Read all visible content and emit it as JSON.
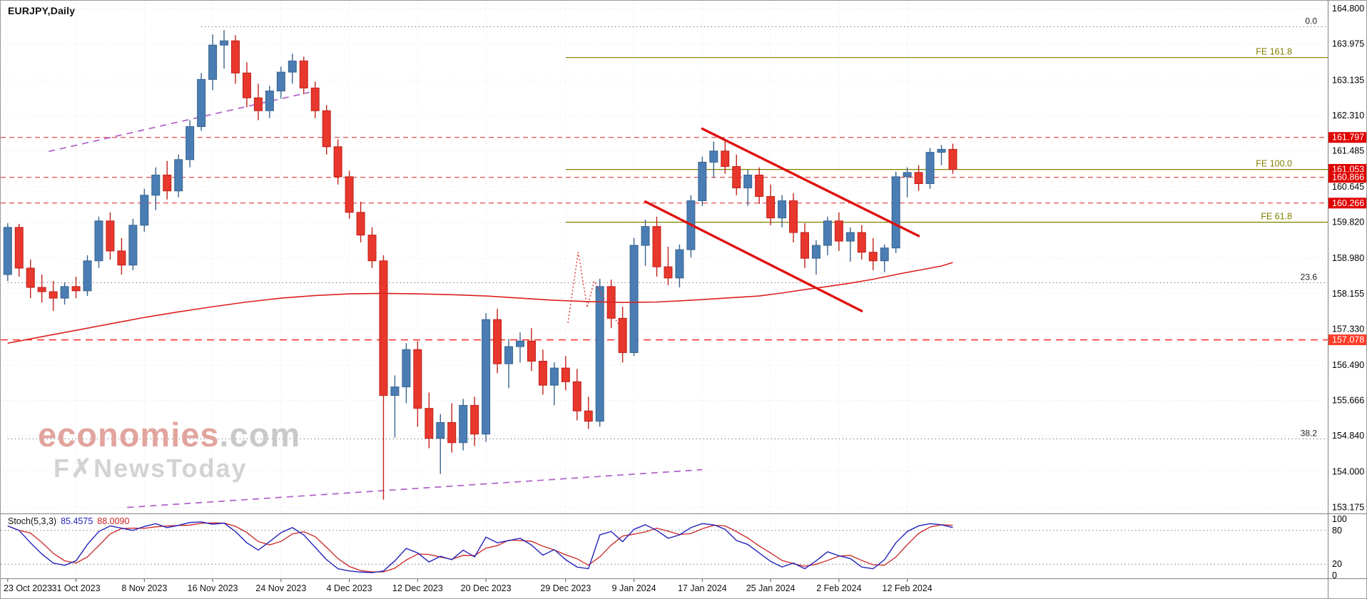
{
  "window": {
    "title": "EURJPY,Daily"
  },
  "watermark": {
    "brand": "economies",
    "brand_suffix": ".com",
    "tagline": "F✗NewsToday"
  },
  "indicator": {
    "label": "Stoch(5,3,3)",
    "main_value": "85.4575",
    "signal_value": "88.0090",
    "axis_labels": [
      {
        "label": "100",
        "value": 100
      },
      {
        "label": "80",
        "value": 80
      },
      {
        "label": "20",
        "value": 20
      },
      {
        "label": "0",
        "value": 0
      }
    ],
    "level_lines": [
      80,
      20
    ]
  },
  "colors": {
    "background": "#ffffff",
    "grid": "#dfe4f2",
    "bull": "#4a7db3",
    "bull_border": "#3a648f",
    "bear": "#e8372c",
    "bear_border": "#c0211a",
    "ma": "#dd2020",
    "channel": "#e01010",
    "trendline": "#b266cc",
    "fib_expansion": "#808000",
    "fib_retracement": "#3a3a3a",
    "resistance": "#dd2222",
    "support_bright": "#ff3333",
    "price_tag": "#e00000",
    "price_tag_bright": "#ff3c28",
    "axis_text": "#000000",
    "separator": "#808080",
    "stoch_main": "#2222bb",
    "stoch_signal": "#cc2222",
    "stoch_level": "#9a9a9a"
  },
  "chart_data": {
    "type": "candlestick",
    "symbol": "EURJPY",
    "timeframe": "Daily",
    "ylim": [
      153.03,
      164.985
    ],
    "price_axis_labels": [
      "164.800",
      "163.975",
      "163.135",
      "162.310",
      "161.485",
      "160.645",
      "159.820",
      "158.980",
      "158.155",
      "157.330",
      "156.490",
      "155.666",
      "154.840",
      "154.000",
      "153.175"
    ],
    "date_ticks": [
      {
        "label": "23 Oct 2023",
        "index": 0
      },
      {
        "label": "31 Oct 2023",
        "index": 6
      },
      {
        "label": "8 Nov 2023",
        "index": 12
      },
      {
        "label": "16 Nov 2023",
        "index": 18
      },
      {
        "label": "24 Nov 2023",
        "index": 24
      },
      {
        "label": "4 Dec 2023",
        "index": 30
      },
      {
        "label": "12 Dec 2023",
        "index": 36
      },
      {
        "label": "20 Dec 2023",
        "index": 42
      },
      {
        "label": "29 Dec 2023",
        "index": 49
      },
      {
        "label": "9 Jan 2024",
        "index": 55
      },
      {
        "label": "17 Jan 2024",
        "index": 61
      },
      {
        "label": "25 Jan 2024",
        "index": 67
      },
      {
        "label": "2 Feb 2024",
        "index": 73
      },
      {
        "label": "12 Feb 2024",
        "index": 79
      }
    ],
    "candles_ohlc": [
      [
        158.6,
        159.8,
        158.45,
        159.7
      ],
      [
        159.7,
        159.78,
        158.55,
        158.75
      ],
      [
        158.75,
        158.95,
        158.05,
        158.3
      ],
      [
        158.3,
        158.6,
        157.95,
        158.2
      ],
      [
        158.2,
        158.45,
        157.75,
        158.05
      ],
      [
        158.05,
        158.42,
        157.9,
        158.32
      ],
      [
        158.32,
        158.55,
        158.05,
        158.22
      ],
      [
        158.22,
        159.05,
        158.1,
        158.92
      ],
      [
        158.92,
        159.95,
        158.75,
        159.85
      ],
      [
        159.85,
        160.05,
        158.95,
        159.15
      ],
      [
        159.15,
        159.45,
        158.6,
        158.82
      ],
      [
        158.82,
        159.9,
        158.7,
        159.75
      ],
      [
        159.75,
        160.6,
        159.6,
        160.45
      ],
      [
        160.45,
        161.1,
        160.1,
        160.92
      ],
      [
        160.92,
        161.25,
        160.35,
        160.55
      ],
      [
        160.55,
        161.4,
        160.4,
        161.28
      ],
      [
        161.28,
        162.2,
        161.1,
        162.05
      ],
      [
        162.05,
        163.3,
        161.95,
        163.15
      ],
      [
        163.15,
        164.2,
        162.9,
        163.95
      ],
      [
        163.95,
        164.3,
        163.4,
        164.05
      ],
      [
        164.05,
        164.18,
        163.05,
        163.3
      ],
      [
        163.3,
        163.55,
        162.5,
        162.72
      ],
      [
        162.72,
        163.05,
        162.2,
        162.42
      ],
      [
        162.42,
        163.0,
        162.25,
        162.88
      ],
      [
        162.88,
        163.45,
        162.7,
        163.32
      ],
      [
        163.32,
        163.75,
        163.05,
        163.58
      ],
      [
        163.58,
        163.68,
        162.8,
        162.95
      ],
      [
        162.95,
        163.1,
        162.25,
        162.42
      ],
      [
        162.42,
        162.55,
        161.4,
        161.58
      ],
      [
        161.58,
        161.75,
        160.7,
        160.88
      ],
      [
        160.88,
        161.02,
        159.9,
        160.05
      ],
      [
        160.05,
        160.3,
        159.35,
        159.52
      ],
      [
        159.52,
        159.7,
        158.75,
        158.92
      ],
      [
        158.92,
        159.05,
        153.35,
        155.78
      ],
      [
        155.78,
        156.25,
        154.8,
        155.98
      ],
      [
        155.98,
        157.0,
        155.6,
        156.85
      ],
      [
        156.85,
        157.05,
        155.05,
        155.48
      ],
      [
        155.48,
        155.85,
        154.55,
        154.78
      ],
      [
        154.78,
        155.35,
        153.95,
        155.15
      ],
      [
        155.15,
        155.6,
        154.45,
        154.68
      ],
      [
        154.68,
        155.7,
        154.5,
        155.55
      ],
      [
        155.55,
        155.75,
        154.6,
        154.88
      ],
      [
        154.88,
        157.7,
        154.7,
        157.55
      ],
      [
        157.55,
        157.8,
        156.3,
        156.52
      ],
      [
        156.52,
        157.1,
        155.95,
        156.92
      ],
      [
        156.92,
        157.25,
        156.55,
        157.05
      ],
      [
        157.05,
        157.35,
        156.35,
        156.58
      ],
      [
        156.58,
        156.85,
        155.8,
        156.02
      ],
      [
        156.02,
        156.55,
        155.55,
        156.42
      ],
      [
        156.42,
        156.7,
        155.9,
        156.1
      ],
      [
        156.1,
        156.4,
        155.2,
        155.42
      ],
      [
        155.42,
        155.75,
        155.0,
        155.18
      ],
      [
        155.18,
        158.5,
        155.05,
        158.32
      ],
      [
        158.32,
        158.48,
        157.35,
        157.58
      ],
      [
        157.58,
        157.85,
        156.55,
        156.78
      ],
      [
        156.78,
        159.45,
        156.7,
        159.28
      ],
      [
        159.28,
        159.88,
        158.8,
        159.72
      ],
      [
        159.72,
        159.95,
        158.55,
        158.78
      ],
      [
        158.78,
        159.25,
        158.35,
        158.52
      ],
      [
        158.52,
        159.3,
        158.3,
        159.18
      ],
      [
        159.18,
        160.45,
        159.0,
        160.32
      ],
      [
        160.32,
        161.35,
        160.2,
        161.22
      ],
      [
        161.22,
        161.7,
        160.85,
        161.48
      ],
      [
        161.48,
        161.75,
        160.95,
        161.12
      ],
      [
        161.12,
        161.4,
        160.45,
        160.62
      ],
      [
        160.62,
        161.05,
        160.2,
        160.92
      ],
      [
        160.92,
        161.1,
        160.25,
        160.42
      ],
      [
        160.42,
        160.7,
        159.75,
        159.92
      ],
      [
        159.92,
        160.45,
        159.7,
        160.32
      ],
      [
        160.32,
        160.5,
        159.35,
        159.58
      ],
      [
        159.58,
        159.8,
        158.75,
        158.98
      ],
      [
        158.98,
        159.4,
        158.6,
        159.28
      ],
      [
        159.28,
        159.95,
        159.05,
        159.85
      ],
      [
        159.85,
        160.05,
        159.15,
        159.38
      ],
      [
        159.38,
        159.7,
        158.9,
        159.58
      ],
      [
        159.58,
        159.75,
        158.95,
        159.12
      ],
      [
        159.12,
        159.45,
        158.7,
        158.92
      ],
      [
        158.92,
        159.3,
        158.65,
        159.22
      ],
      [
        159.22,
        161.0,
        159.1,
        160.88
      ],
      [
        160.88,
        161.1,
        160.4,
        160.98
      ],
      [
        160.98,
        161.15,
        160.55,
        160.72
      ],
      [
        160.72,
        161.55,
        160.6,
        161.45
      ],
      [
        161.45,
        161.62,
        161.15,
        161.52
      ],
      [
        161.52,
        161.65,
        160.95,
        161.05
      ]
    ],
    "moving_average": [
      [
        0,
        157.0
      ],
      [
        3,
        157.15
      ],
      [
        6,
        157.3
      ],
      [
        9,
        157.45
      ],
      [
        12,
        157.6
      ],
      [
        15,
        157.73
      ],
      [
        18,
        157.85
      ],
      [
        21,
        157.96
      ],
      [
        24,
        158.05
      ],
      [
        27,
        158.11
      ],
      [
        30,
        158.15
      ],
      [
        33,
        158.16
      ],
      [
        36,
        158.15
      ],
      [
        39,
        158.13
      ],
      [
        42,
        158.1
      ],
      [
        45,
        158.05
      ],
      [
        48,
        158.0
      ],
      [
        51,
        157.97
      ],
      [
        54,
        157.95
      ],
      [
        57,
        157.96
      ],
      [
        60,
        158.0
      ],
      [
        63,
        158.05
      ],
      [
        66,
        158.1
      ],
      [
        68,
        158.17
      ],
      [
        70,
        158.25
      ],
      [
        72,
        158.32
      ],
      [
        74,
        158.4
      ],
      [
        76,
        158.49
      ],
      [
        78,
        158.6
      ],
      [
        80,
        158.7
      ],
      [
        81,
        158.75
      ],
      [
        82,
        158.8
      ],
      [
        83,
        158.88
      ]
    ],
    "annotations": {
      "channel": {
        "upper": [
          [
            61,
            162.0
          ],
          [
            80,
            159.5
          ]
        ],
        "lower": [
          [
            56,
            160.3
          ],
          [
            75,
            157.75
          ]
        ]
      },
      "trendlines": [
        {
          "points": [
            [
              3.6,
              161.47
            ],
            [
              26.5,
              162.85
            ]
          ]
        },
        {
          "points": [
            [
              10.5,
              153.17
            ],
            [
              61,
              154.05
            ]
          ]
        }
      ],
      "zigzag": [
        [
          49.2,
          157.47
        ],
        [
          50.1,
          159.12
        ],
        [
          50.9,
          157.83
        ],
        [
          51.5,
          158.45
        ],
        [
          53.6,
          157.45
        ]
      ],
      "fib_expansion": {
        "start_index": 49,
        "levels": [
          {
            "label": "FE 161.8",
            "price": 163.66
          },
          {
            "label": "FE 100.0",
            "price": 161.05
          },
          {
            "label": "FE 61.8",
            "price": 159.82
          }
        ]
      },
      "fib_retracement": [
        {
          "label": "0.0",
          "price": 164.38,
          "start_index": 17
        },
        {
          "label": "23.6",
          "price": 158.41,
          "start_index": 0
        },
        {
          "label": "38.2",
          "price": 154.77,
          "start_index": 0
        }
      ],
      "hlines": [
        {
          "price": 161.797,
          "style": "resistance"
        },
        {
          "price": 160.866,
          "style": "resistance"
        },
        {
          "price": 160.266,
          "style": "resistance"
        },
        {
          "price": 157.078,
          "style": "support"
        }
      ]
    },
    "price_tags": [
      {
        "text": "161.797",
        "price": 161.797,
        "bright": false
      },
      {
        "text": "161.053",
        "price": 161.053,
        "bright": false
      },
      {
        "text": "160.866",
        "price": 160.866,
        "bright": false
      },
      {
        "text": "160.266",
        "price": 160.266,
        "bright": false
      },
      {
        "text": "157.078",
        "price": 157.078,
        "bright": true
      }
    ],
    "stochastic": {
      "range": [
        0,
        100
      ],
      "k": [
        88,
        80,
        58,
        38,
        22,
        18,
        26,
        55,
        78,
        88,
        84,
        80,
        87,
        92,
        85,
        89,
        94,
        95,
        91,
        93,
        78,
        58,
        45,
        60,
        76,
        85,
        72,
        50,
        28,
        12,
        8,
        6,
        5,
        8,
        26,
        48,
        40,
        24,
        34,
        28,
        45,
        33,
        68,
        58,
        62,
        66,
        54,
        36,
        46,
        28,
        15,
        12,
        72,
        78,
        60,
        82,
        90,
        80,
        66,
        72,
        85,
        92,
        90,
        82,
        62,
        55,
        40,
        25,
        15,
        22,
        12,
        26,
        42,
        35,
        30,
        15,
        12,
        28,
        58,
        78,
        88,
        92,
        90,
        85
      ]
    }
  }
}
